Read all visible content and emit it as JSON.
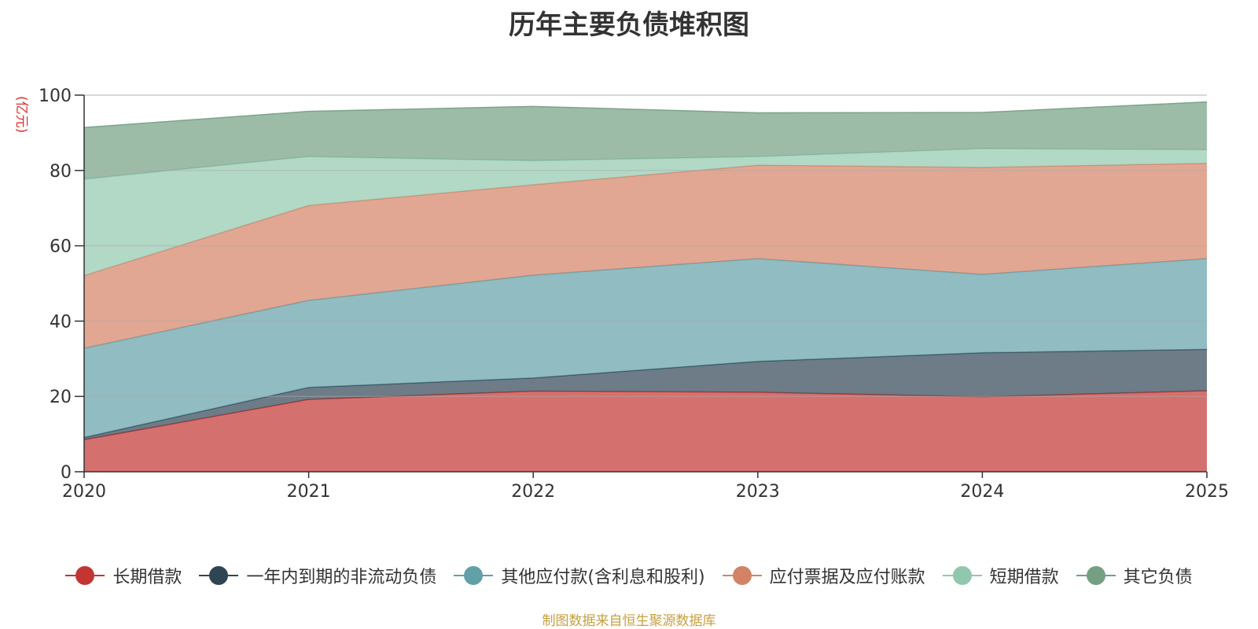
{
  "chart_data": {
    "type": "area",
    "stacked": true,
    "title": "历年主要负债堆积图",
    "ylabel": "(亿元)",
    "ylim": [
      0,
      100
    ],
    "yticks": [
      0,
      20,
      40,
      60,
      80,
      100
    ],
    "categories": [
      "2020",
      "2021",
      "2022",
      "2023",
      "2024",
      "2025"
    ],
    "series": [
      {
        "name": "长期借款",
        "color": "#c23531",
        "values": [
          8.5,
          19.2,
          21.4,
          21.1,
          19.9,
          21.5
        ]
      },
      {
        "name": "一年内到期的非流动负债",
        "color": "#2f4554",
        "values": [
          0.6,
          3.2,
          3.5,
          8.2,
          11.7,
          11.0
        ]
      },
      {
        "name": "其他应付款(含利息和股利)",
        "color": "#61a0a8",
        "values": [
          23.7,
          23.1,
          27.3,
          27.3,
          20.8,
          24.1
        ]
      },
      {
        "name": "应付票据及应付账款",
        "color": "#d48265",
        "values": [
          19.3,
          25.2,
          24.0,
          24.8,
          28.4,
          25.3
        ]
      },
      {
        "name": "短期借款",
        "color": "#91c7ae",
        "values": [
          25.6,
          13.0,
          6.4,
          2.3,
          5.0,
          3.6
        ]
      },
      {
        "name": "其它负债",
        "color": "#749f83",
        "values": [
          13.7,
          12.0,
          14.4,
          11.6,
          9.6,
          12.7
        ]
      }
    ]
  },
  "source_text": "制图数据来自恒生聚源数据库"
}
